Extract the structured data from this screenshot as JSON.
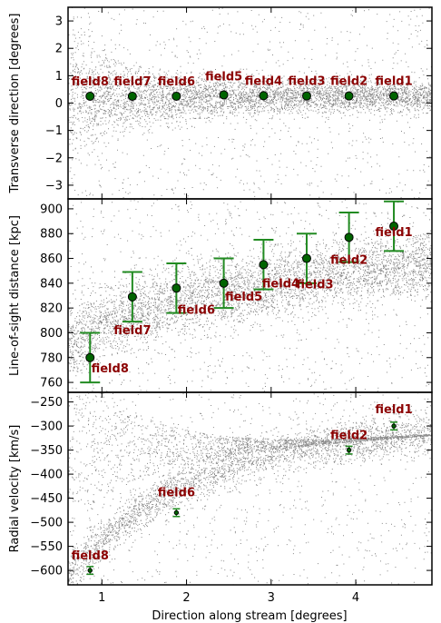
{
  "xlabel": "Direction along stream [degrees]",
  "chart_data": [
    {
      "type": "scatter",
      "ylabel": "Transverse direction [degrees]",
      "xlim": [
        0.6,
        4.9
      ],
      "ylim": [
        -3.5,
        3.5
      ],
      "yticks": [
        -3,
        -2,
        -1,
        0,
        1,
        2,
        3
      ],
      "yticklabels": [
        "−3",
        "−2",
        "−1",
        "0",
        "1",
        "2",
        "3"
      ],
      "xticks": [
        1,
        2,
        3,
        4
      ],
      "xticklabels": [
        "",
        "",
        "",
        ""
      ],
      "points": [
        {
          "label": "field8",
          "x": 0.86,
          "y": 0.25
        },
        {
          "label": "field7",
          "x": 1.36,
          "y": 0.25
        },
        {
          "label": "field6",
          "x": 1.88,
          "y": 0.25
        },
        {
          "label": "field5",
          "x": 2.44,
          "y": 0.3
        },
        {
          "label": "field4",
          "x": 2.91,
          "y": 0.27
        },
        {
          "label": "field3",
          "x": 3.42,
          "y": 0.26
        },
        {
          "label": "field2",
          "x": 3.92,
          "y": 0.26
        },
        {
          "label": "field1",
          "x": 4.45,
          "y": 0.26
        }
      ],
      "marker_color": "#006400",
      "background_color": "#888888",
      "label_color": "#8b0000"
    },
    {
      "type": "scatter",
      "ylabel": "Line-of-sight distance [kpc]",
      "xlim": [
        0.6,
        4.9
      ],
      "ylim": [
        752,
        908
      ],
      "yticks": [
        760,
        780,
        800,
        820,
        840,
        860,
        880,
        900
      ],
      "yticklabels": [
        "760",
        "780",
        "800",
        "820",
        "840",
        "860",
        "880",
        "900"
      ],
      "xticks": [
        1,
        2,
        3,
        4
      ],
      "xticklabels": [
        "",
        "",
        "",
        ""
      ],
      "points": [
        {
          "label": "field8",
          "x": 0.86,
          "y": 780,
          "err": 20
        },
        {
          "label": "field7",
          "x": 1.36,
          "y": 829,
          "err": 20
        },
        {
          "label": "field6",
          "x": 1.88,
          "y": 836,
          "err": 20
        },
        {
          "label": "field5",
          "x": 2.44,
          "y": 840,
          "err": 20
        },
        {
          "label": "field4",
          "x": 2.91,
          "y": 855,
          "err": 20
        },
        {
          "label": "field3",
          "x": 3.42,
          "y": 860,
          "err": 20
        },
        {
          "label": "field2",
          "x": 3.92,
          "y": 877,
          "err": 20
        },
        {
          "label": "field1",
          "x": 4.45,
          "y": 886,
          "err": 20
        }
      ],
      "errorbar_color": "#228b22"
    },
    {
      "type": "scatter",
      "ylabel": "Radial velocity [km/s]",
      "xlabel": "Direction along stream [degrees]",
      "xlim": [
        0.6,
        4.9
      ],
      "ylim": [
        -630,
        -230
      ],
      "yticks": [
        -600,
        -550,
        -500,
        -450,
        -400,
        -350,
        -300,
        -250
      ],
      "yticklabels": [
        "−600",
        "−550",
        "−500",
        "−450",
        "−400",
        "−350",
        "−300",
        "−250"
      ],
      "xticks": [
        1,
        2,
        3,
        4
      ],
      "xticklabels": [
        "1",
        "2",
        "3",
        "4"
      ],
      "points": [
        {
          "label": "field8",
          "x": 0.86,
          "y": -600,
          "err": 8
        },
        {
          "label": "field6",
          "x": 1.88,
          "y": -480,
          "err": 8
        },
        {
          "label": "field2",
          "x": 3.92,
          "y": -350,
          "err": 8
        },
        {
          "label": "field1",
          "x": 4.45,
          "y": -300,
          "err": 8
        }
      ]
    }
  ]
}
